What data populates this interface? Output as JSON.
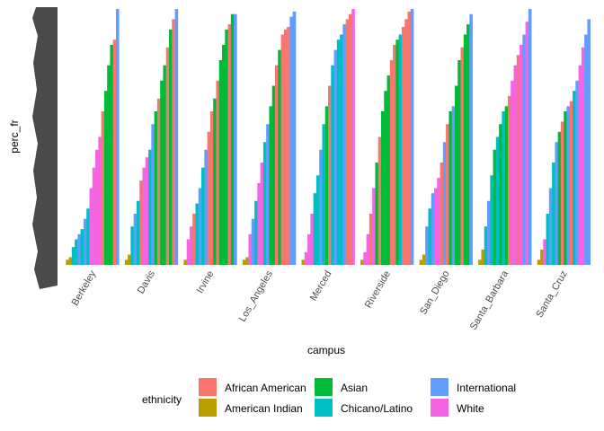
{
  "chart_data": {
    "type": "bar",
    "x_label": "campus",
    "y_label": "perc_fr",
    "legend_title": "ethnicity",
    "ylim": [
      0,
      1
    ],
    "series": [
      {
        "name": "African American",
        "color": "#F8766D"
      },
      {
        "name": "American Indian",
        "color": "#B79F00"
      },
      {
        "name": "Asian",
        "color": "#00BA38"
      },
      {
        "name": "Chicano/Latino",
        "color": "#00BFC4"
      },
      {
        "name": "International",
        "color": "#619CFF"
      },
      {
        "name": "White",
        "color": "#F564E3"
      }
    ],
    "campuses": [
      {
        "name": "Berkeley",
        "values": [
          0.02,
          0.03,
          0.07,
          0.1,
          0.12,
          0.14,
          0.18,
          0.22,
          0.3,
          0.38,
          0.45,
          0.5,
          0.6,
          0.68,
          0.78,
          0.86,
          0.88,
          1.0
        ],
        "groups": [
          "American Indian",
          "American Indian",
          "Chicano/Latino",
          "Chicano/Latino",
          "International",
          "Chicano/Latino",
          "International",
          "Chicano/Latino",
          "White",
          "White",
          "White",
          "White",
          "African American",
          "Asian",
          "Asian",
          "Asian",
          "African American",
          "International"
        ]
      },
      {
        "name": "Davis",
        "values": [
          0.02,
          0.04,
          0.15,
          0.2,
          0.25,
          0.33,
          0.38,
          0.42,
          0.45,
          0.55,
          0.6,
          0.65,
          0.72,
          0.78,
          0.85,
          0.92,
          0.96,
          1.0
        ],
        "groups": [
          "American Indian",
          "American Indian",
          "Chicano/Latino",
          "International",
          "Chicano/Latino",
          "African American",
          "White",
          "White",
          "Chicano/Latino",
          "International",
          "Asian",
          "African American",
          "Asian",
          "Asian",
          "African American",
          "Asian",
          "African American",
          "International"
        ]
      },
      {
        "name": "Irvine",
        "values": [
          0.02,
          0.1,
          0.15,
          0.2,
          0.24,
          0.3,
          0.38,
          0.45,
          0.52,
          0.6,
          0.65,
          0.72,
          0.8,
          0.86,
          0.92,
          0.94,
          0.98,
          0.98
        ],
        "groups": [
          "American Indian",
          "White",
          "White",
          "African American",
          "Chicano/Latino",
          "International",
          "Chicano/Latino",
          "International",
          "African American",
          "African American",
          "Asian",
          "African American",
          "Asian",
          "Asian",
          "Asian",
          "African American",
          "Asian",
          "International"
        ]
      },
      {
        "name": "Los_Angeles",
        "values": [
          0.02,
          0.03,
          0.12,
          0.18,
          0.25,
          0.32,
          0.4,
          0.48,
          0.55,
          0.62,
          0.7,
          0.78,
          0.84,
          0.9,
          0.92,
          0.93,
          0.97,
          0.99
        ],
        "groups": [
          "American Indian",
          "American Indian",
          "White",
          "International",
          "Chicano/Latino",
          "White",
          "White",
          "Chicano/Latino",
          "International",
          "Asian",
          "Asian",
          "African American",
          "Asian",
          "African American",
          "African American",
          "African American",
          "International",
          "International"
        ]
      },
      {
        "name": "Merced",
        "values": [
          0.02,
          0.05,
          0.12,
          0.2,
          0.28,
          0.35,
          0.45,
          0.55,
          0.62,
          0.7,
          0.78,
          0.84,
          0.88,
          0.9,
          0.94,
          0.96,
          0.98,
          1.0
        ],
        "groups": [
          "American Indian",
          "White",
          "White",
          "White",
          "Chicano/Latino",
          "Chicano/Latino",
          "International",
          "Chicano/Latino",
          "Asian",
          "African American",
          "Chicano/Latino",
          "International",
          "Chicano/Latino",
          "Chicano/Latino",
          "International",
          "African American",
          "African American",
          "White"
        ]
      },
      {
        "name": "Riverside",
        "values": [
          0.02,
          0.05,
          0.12,
          0.2,
          0.3,
          0.4,
          0.5,
          0.6,
          0.68,
          0.74,
          0.8,
          0.86,
          0.88,
          0.9,
          0.93,
          0.96,
          0.99,
          1.0
        ],
        "groups": [
          "American Indian",
          "White",
          "White",
          "African American",
          "White",
          "Asian",
          "African American",
          "Asian",
          "Asian",
          "Asian",
          "African American",
          "African American",
          "Asian",
          "Chicano/Latino",
          "African American",
          "African American",
          "African American",
          "International"
        ]
      },
      {
        "name": "San_Diego",
        "values": [
          0.02,
          0.04,
          0.15,
          0.22,
          0.28,
          0.3,
          0.34,
          0.4,
          0.48,
          0.55,
          0.6,
          0.62,
          0.7,
          0.8,
          0.85,
          0.9,
          0.94,
          0.98
        ],
        "groups": [
          "American Indian",
          "American Indian",
          "International",
          "Chicano/Latino",
          "International",
          "White",
          "White",
          "African American",
          "International",
          "African American",
          "Asian",
          "International",
          "Asian",
          "Asian",
          "African American",
          "Asian",
          "Asian",
          "International"
        ]
      },
      {
        "name": "Santa_Barbara",
        "values": [
          0.02,
          0.06,
          0.15,
          0.25,
          0.35,
          0.45,
          0.5,
          0.55,
          0.6,
          0.62,
          0.66,
          0.72,
          0.78,
          0.82,
          0.86,
          0.9,
          0.95,
          1.0
        ],
        "groups": [
          "American Indian",
          "American Indian",
          "Chicano/Latino",
          "International",
          "Chicano/Latino",
          "Asian",
          "Chicano/Latino",
          "Asian",
          "Chicano/Latino",
          "Asian",
          "African American",
          "White",
          "White",
          "African American",
          "White",
          "International",
          "White",
          "International"
        ]
      },
      {
        "name": "Santa_Cruz",
        "values": [
          0.02,
          0.06,
          0.1,
          0.2,
          0.3,
          0.4,
          0.48,
          0.52,
          0.56,
          0.6,
          0.62,
          0.64,
          0.68,
          0.72,
          0.78,
          0.85,
          0.9,
          0.96
        ],
        "groups": [
          "American Indian",
          "American Indian",
          "White",
          "Chicano/Latino",
          "International",
          "Chicano/Latino",
          "International",
          "Asian",
          "African American",
          "Asian",
          "International",
          "African American",
          "Chicano/Latino",
          "International",
          "White",
          "White",
          "International",
          "International"
        ]
      }
    ]
  }
}
